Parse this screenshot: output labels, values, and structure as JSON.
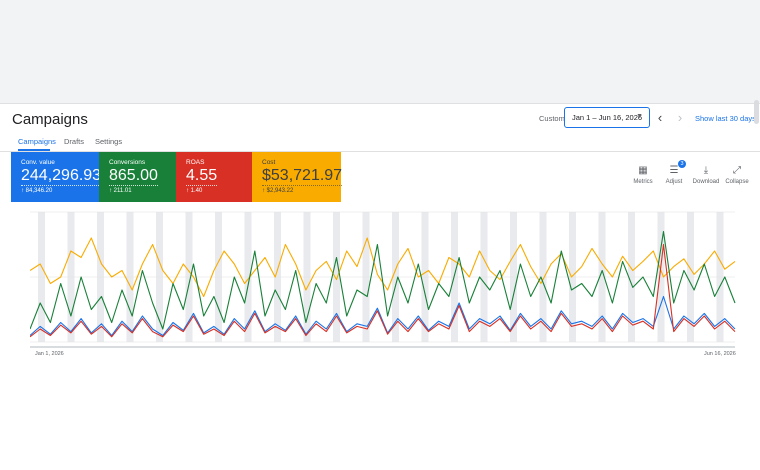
{
  "page": {
    "title": "Campaigns"
  },
  "date_range": {
    "label": "Custom",
    "value": "Jan 1 – Jun 16, 2026",
    "show_last": "Show last 30 days"
  },
  "tabs": [
    {
      "label": "Campaigns",
      "active": true
    },
    {
      "label": "Drafts",
      "active": false
    },
    {
      "label": "Settings",
      "active": false
    }
  ],
  "metrics": [
    {
      "label": "Conv. value",
      "value": "244,296.93",
      "delta": "↑ 84,346.20",
      "color": "#1a73e8"
    },
    {
      "label": "Conversions",
      "value": "865.00",
      "delta": "↑ 211.01",
      "color": "#188038"
    },
    {
      "label": "ROAS",
      "value": "4.55",
      "delta": "↑ 1.40",
      "color": "#d93025"
    },
    {
      "label": "Cost",
      "value": "$53,721.97",
      "delta": "↑ $2,943.22",
      "color": "#f9ab00"
    }
  ],
  "toolbar": [
    {
      "label": "Metrics",
      "icon": "metrics-icon"
    },
    {
      "label": "Adjust",
      "icon": "tune-icon",
      "badge": "3"
    },
    {
      "label": "Download",
      "icon": "download-icon"
    },
    {
      "label": "Collapse",
      "icon": "collapse-icon"
    }
  ],
  "chart_axis": {
    "start": "Jan 1, 2026",
    "end": "Jun 16, 2026"
  },
  "chart_data": {
    "type": "line",
    "x_range": [
      "Jan 1, 2026",
      "Jun 16, 2026"
    ],
    "grid": true,
    "series": [
      {
        "color": "#f9ab00",
        "values": [
          0.55,
          0.6,
          0.45,
          0.5,
          0.7,
          0.65,
          0.8,
          0.6,
          0.5,
          0.55,
          0.4,
          0.6,
          0.75,
          0.55,
          0.45,
          0.6,
          0.5,
          0.35,
          0.55,
          0.7,
          0.6,
          0.45,
          0.55,
          0.65,
          0.5,
          0.75,
          0.6,
          0.4,
          0.55,
          0.62,
          0.48,
          0.7,
          0.58,
          0.8,
          0.52,
          0.4,
          0.6,
          0.72,
          0.5,
          0.55,
          0.45,
          0.65,
          0.6,
          0.5,
          0.7,
          0.55,
          0.48,
          0.62,
          0.75,
          0.58,
          0.45,
          0.6,
          0.68,
          0.5,
          0.58,
          0.72,
          0.6,
          0.5,
          0.66,
          0.55,
          0.62,
          0.7,
          0.5,
          0.58,
          0.64,
          0.52,
          0.6,
          0.7,
          0.56,
          0.62
        ]
      },
      {
        "color": "#188038",
        "values": [
          0.1,
          0.3,
          0.15,
          0.45,
          0.2,
          0.5,
          0.25,
          0.35,
          0.15,
          0.4,
          0.2,
          0.55,
          0.3,
          0.1,
          0.45,
          0.25,
          0.6,
          0.2,
          0.35,
          0.15,
          0.5,
          0.3,
          0.7,
          0.2,
          0.4,
          0.25,
          0.55,
          0.15,
          0.45,
          0.3,
          0.65,
          0.2,
          0.4,
          0.35,
          0.75,
          0.2,
          0.5,
          0.3,
          0.6,
          0.25,
          0.45,
          0.35,
          0.65,
          0.3,
          0.5,
          0.4,
          0.55,
          0.25,
          0.6,
          0.35,
          0.5,
          0.3,
          0.7,
          0.4,
          0.45,
          0.35,
          0.55,
          0.3,
          0.62,
          0.42,
          0.5,
          0.35,
          0.85,
          0.3,
          0.55,
          0.4,
          0.6,
          0.35,
          0.5,
          0.3
        ]
      },
      {
        "color": "#1a73e8",
        "values": [
          0.05,
          0.12,
          0.06,
          0.15,
          0.08,
          0.18,
          0.07,
          0.14,
          0.05,
          0.16,
          0.08,
          0.2,
          0.1,
          0.05,
          0.15,
          0.09,
          0.22,
          0.07,
          0.12,
          0.06,
          0.18,
          0.1,
          0.24,
          0.08,
          0.14,
          0.09,
          0.2,
          0.06,
          0.16,
          0.1,
          0.22,
          0.08,
          0.14,
          0.12,
          0.26,
          0.07,
          0.18,
          0.1,
          0.2,
          0.09,
          0.16,
          0.12,
          0.3,
          0.1,
          0.18,
          0.14,
          0.2,
          0.09,
          0.22,
          0.12,
          0.18,
          0.1,
          0.24,
          0.14,
          0.16,
          0.12,
          0.2,
          0.1,
          0.22,
          0.15,
          0.18,
          0.12,
          0.35,
          0.1,
          0.2,
          0.14,
          0.22,
          0.12,
          0.18,
          0.1
        ]
      },
      {
        "color": "#d93025",
        "values": [
          0.04,
          0.1,
          0.05,
          0.13,
          0.07,
          0.16,
          0.06,
          0.12,
          0.04,
          0.14,
          0.07,
          0.18,
          0.08,
          0.04,
          0.13,
          0.08,
          0.2,
          0.06,
          0.1,
          0.05,
          0.16,
          0.08,
          0.22,
          0.07,
          0.12,
          0.08,
          0.18,
          0.05,
          0.14,
          0.08,
          0.2,
          0.07,
          0.12,
          0.1,
          0.24,
          0.06,
          0.16,
          0.08,
          0.18,
          0.08,
          0.14,
          0.1,
          0.28,
          0.08,
          0.16,
          0.12,
          0.18,
          0.08,
          0.2,
          0.1,
          0.16,
          0.08,
          0.22,
          0.12,
          0.14,
          0.1,
          0.18,
          0.08,
          0.2,
          0.13,
          0.16,
          0.1,
          0.75,
          0.08,
          0.18,
          0.12,
          0.2,
          0.1,
          0.16,
          0.08
        ]
      }
    ]
  }
}
